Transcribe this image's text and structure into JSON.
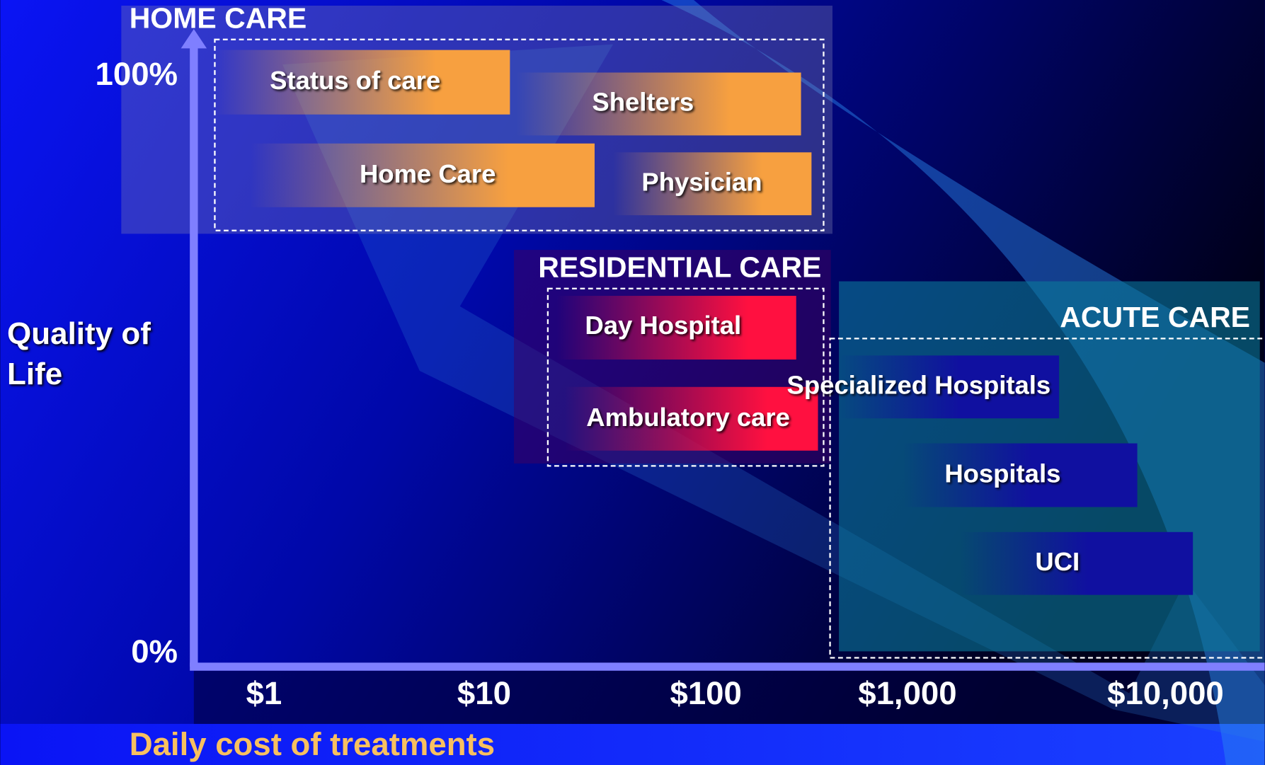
{
  "y_axis": {
    "label": "Quality of Life",
    "ticks": [
      "100%",
      "0%"
    ]
  },
  "x_axis": {
    "label": "Daily cost of treatments",
    "ticks": [
      "$1",
      "$10",
      "$100",
      "$1,000",
      "$10,000"
    ]
  },
  "groups": [
    {
      "title": "HOME CARE",
      "items": [
        "Status of care",
        "Shelters",
        "Home Care",
        "Physician"
      ]
    },
    {
      "title": "RESIDENTIAL CARE",
      "items": [
        "Day Hospital",
        "Ambulatory care"
      ]
    },
    {
      "title": "ACUTE CARE",
      "items": [
        "Specialized Hospitals",
        "Hospitals",
        "UCI"
      ]
    }
  ]
}
